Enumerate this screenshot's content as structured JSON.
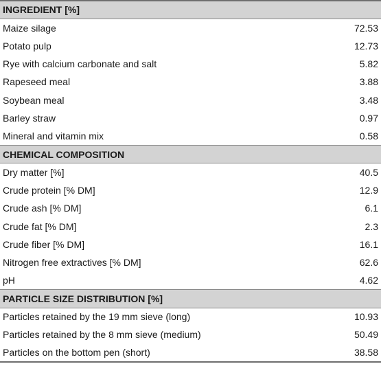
{
  "sections": [
    {
      "title": "INGREDIENT [%]",
      "rows": [
        {
          "label": "Maize silage",
          "value": "72.53"
        },
        {
          "label": "Potato pulp",
          "value": "12.73"
        },
        {
          "label": "Rye with calcium carbonate and salt",
          "value": "5.82"
        },
        {
          "label": "Rapeseed meal",
          "value": "3.88"
        },
        {
          "label": "Soybean meal",
          "value": "3.48"
        },
        {
          "label": "Barley straw",
          "value": "0.97"
        },
        {
          "label": "Mineral and vitamin mix",
          "value": "0.58"
        }
      ]
    },
    {
      "title": "CHEMICAL COMPOSITION",
      "rows": [
        {
          "label": "Dry matter [%]",
          "value": "40.5"
        },
        {
          "label": "Crude protein [% DM]",
          "value": "12.9"
        },
        {
          "label": "Crude ash [% DM]",
          "value": "6.1"
        },
        {
          "label": "Crude fat [% DM]",
          "value": "2.3"
        },
        {
          "label": "Crude fiber [% DM]",
          "value": "16.1"
        },
        {
          "label": "Nitrogen free extractives [% DM]",
          "value": "62.6"
        },
        {
          "label": "pH",
          "value": "4.62"
        }
      ]
    },
    {
      "title": "PARTICLE SIZE DISTRIBUTION [%]",
      "rows": [
        {
          "label": "Particles retained by the 19 mm sieve (long)",
          "value": "10.93"
        },
        {
          "label": "Particles retained by the 8 mm sieve (medium)",
          "value": "50.49"
        },
        {
          "label": "Particles on the bottom pen (short)",
          "value": "38.58"
        }
      ]
    }
  ]
}
